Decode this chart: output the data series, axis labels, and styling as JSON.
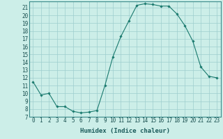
{
  "x": [
    0,
    1,
    2,
    3,
    4,
    5,
    6,
    7,
    8,
    9,
    10,
    11,
    12,
    13,
    14,
    15,
    16,
    17,
    18,
    19,
    20,
    21,
    22,
    23
  ],
  "y": [
    11.5,
    9.8,
    10.0,
    8.3,
    8.3,
    7.7,
    7.5,
    7.6,
    7.8,
    11.0,
    14.7,
    17.3,
    19.3,
    21.3,
    21.5,
    21.4,
    21.2,
    21.2,
    20.2,
    18.7,
    16.7,
    13.4,
    12.2,
    12.0
  ],
  "line_color": "#1a7a6e",
  "marker": "D",
  "marker_size": 1.8,
  "bg_color": "#cceee8",
  "grid_color": "#9ecece",
  "xlabel": "Humidex (Indice chaleur)",
  "xlim": [
    -0.5,
    23.5
  ],
  "ylim": [
    7,
    21.8
  ],
  "yticks": [
    7,
    8,
    9,
    10,
    11,
    12,
    13,
    14,
    15,
    16,
    17,
    18,
    19,
    20,
    21
  ],
  "xticks": [
    0,
    1,
    2,
    3,
    4,
    5,
    6,
    7,
    8,
    9,
    10,
    11,
    12,
    13,
    14,
    15,
    16,
    17,
    18,
    19,
    20,
    21,
    22,
    23
  ],
  "xlabel_fontsize": 6.5,
  "tick_fontsize": 5.5
}
